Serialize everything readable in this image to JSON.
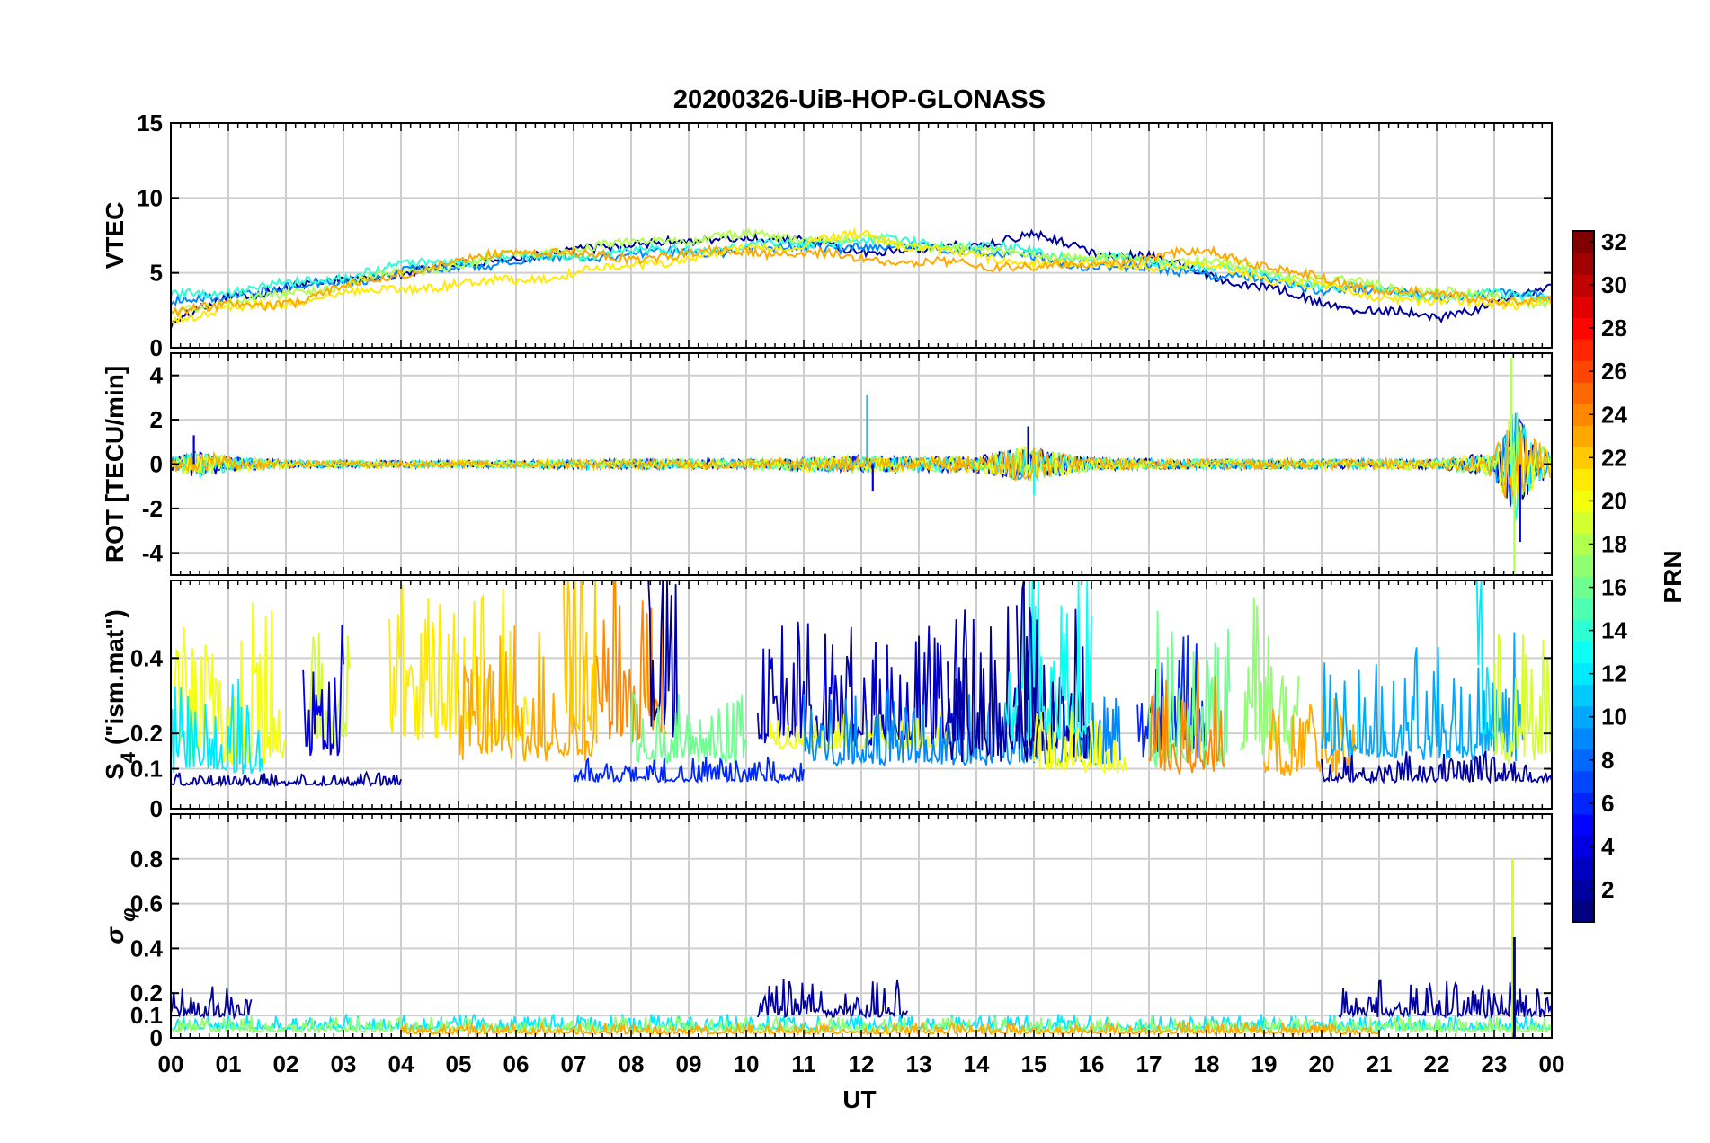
{
  "chart_data": [
    {
      "type": "line",
      "title": "20200326-UiB-HOP-GLONASS",
      "ylabel": "VTEC",
      "ylim": [
        0,
        15
      ],
      "yticks": [
        "0",
        "5",
        "10",
        "15"
      ],
      "xlim": [
        "00",
        "24"
      ],
      "series_coloring": "PRN (colorbar)",
      "series": [
        {
          "prn": 2,
          "x": [
            0.0,
            1.0,
            2.0,
            3.0,
            4.0,
            5.0,
            6.0,
            7.0,
            8.0,
            9.0,
            10.0,
            11.0,
            12.0,
            13.0,
            14.0,
            15.0,
            16.0,
            17.0,
            18.0,
            19.0,
            20.0,
            21.0,
            22.0,
            23.0,
            24.0
          ],
          "y": [
            1.5,
            3.5,
            4.0,
            4.5,
            5.0,
            5.5,
            6.0,
            6.5,
            7.0,
            7.0,
            7.5,
            7.0,
            6.5,
            6.5,
            7.0,
            7.5,
            6.5,
            6.0,
            5.0,
            4.0,
            3.0,
            2.5,
            2.0,
            3.0,
            4.0
          ]
        },
        {
          "prn": 9,
          "x": [
            0.0,
            2.0,
            4.0,
            6.0,
            8.0,
            10.0,
            12.0,
            14.0,
            16.0,
            18.0,
            20.0,
            22.0,
            24.0
          ],
          "y": [
            3.0,
            4.0,
            5.0,
            5.8,
            6.2,
            6.5,
            6.8,
            6.5,
            5.5,
            5.0,
            4.0,
            3.5,
            3.5
          ]
        },
        {
          "prn": 14,
          "x": [
            0.0,
            2.0,
            4.0,
            6.0,
            8.0,
            10.0,
            12.0,
            14.0,
            16.0,
            18.0,
            20.0,
            22.0,
            24.0
          ],
          "y": [
            3.5,
            4.2,
            5.5,
            6.0,
            6.4,
            6.8,
            7.2,
            6.8,
            6.0,
            5.5,
            4.2,
            3.5,
            3.5
          ]
        },
        {
          "prn": 18,
          "x": [
            0.0,
            2.0,
            4.0,
            6.0,
            8.0,
            10.0,
            12.0,
            14.0,
            16.0,
            18.0,
            20.0,
            22.0,
            24.0
          ],
          "y": [
            2.5,
            3.5,
            5.0,
            6.2,
            7.0,
            7.5,
            7.2,
            6.5,
            6.0,
            5.8,
            4.5,
            3.8,
            3.0
          ]
        },
        {
          "prn": 21,
          "x": [
            0.0,
            2.0,
            4.0,
            6.0,
            8.0,
            10.0,
            12.0,
            14.0,
            16.0,
            18.0,
            20.0,
            22.0,
            24.0
          ],
          "y": [
            2.0,
            3.0,
            4.0,
            4.5,
            5.5,
            6.5,
            7.5,
            6.0,
            5.5,
            5.5,
            4.0,
            3.0,
            3.0
          ]
        },
        {
          "prn": 23,
          "x": [
            0.0,
            2.0,
            4.0,
            6.0,
            8.0,
            10.0,
            12.0,
            14.0,
            16.0,
            18.0,
            20.0,
            22.0,
            24.0
          ],
          "y": [
            2.5,
            3.0,
            5.0,
            6.5,
            6.0,
            6.5,
            6.0,
            5.5,
            5.5,
            6.5,
            4.5,
            3.5,
            3.0
          ]
        }
      ]
    },
    {
      "type": "line",
      "ylabel": "ROT [TECU/min]",
      "ylim": [
        -5,
        5
      ],
      "yticks": [
        "-4",
        "-2",
        "0",
        "2",
        "4"
      ],
      "xlim": [
        "00",
        "24"
      ],
      "series_coloring": "PRN (colorbar)",
      "envelope": {
        "x": [
          0.0,
          0.5,
          1.0,
          2.0,
          4.0,
          6.0,
          8.0,
          10.0,
          12.0,
          13.0,
          14.0,
          14.9,
          16.0,
          18.0,
          20.0,
          22.0,
          23.0,
          23.35,
          23.6,
          24.0
        ],
        "y": [
          0.5,
          1.2,
          0.6,
          0.3,
          0.3,
          0.3,
          0.4,
          0.4,
          0.7,
          0.6,
          0.7,
          1.5,
          0.5,
          0.4,
          0.4,
          0.4,
          1.0,
          4.8,
          2.5,
          1.0
        ]
      },
      "spikes": [
        {
          "prn": 3,
          "x": 0.4,
          "y": 1.3
        },
        {
          "prn": 11,
          "x": 12.1,
          "y": 3.1
        },
        {
          "prn": 4,
          "x": 12.2,
          "y": -1.2
        },
        {
          "prn": 2,
          "x": 14.9,
          "y": 1.7
        },
        {
          "prn": 13,
          "x": 15.0,
          "y": -1.4
        },
        {
          "prn": 18,
          "x": 23.3,
          "y": 4.8
        },
        {
          "prn": 18,
          "x": 23.35,
          "y": -4.9
        },
        {
          "prn": 4,
          "x": 23.45,
          "y": -3.5
        }
      ]
    },
    {
      "type": "line",
      "ylabel": "S4 (\"ism.mat\")",
      "ylim": [
        0,
        0.6
      ],
      "yticks": [
        "0",
        "0.1",
        "0.2",
        "0.4"
      ],
      "xlim": [
        "00",
        "24"
      ],
      "series_coloring": "PRN (colorbar)",
      "segments": [
        {
          "prn": 20,
          "start": 0.0,
          "end": 2.0,
          "base": 0.13,
          "amp": 0.25
        },
        {
          "prn": 12,
          "start": 0.0,
          "end": 1.6,
          "base": 0.1,
          "amp": 0.15
        },
        {
          "prn": 2,
          "start": 0.0,
          "end": 4.0,
          "base": 0.06,
          "amp": 0.02
        },
        {
          "prn": 19,
          "start": 2.4,
          "end": 3.1,
          "base": 0.18,
          "amp": 0.2
        },
        {
          "prn": 4,
          "start": 2.3,
          "end": 3.0,
          "base": 0.15,
          "amp": 0.2
        },
        {
          "prn": 21,
          "start": 3.8,
          "end": 6.2,
          "base": 0.18,
          "amp": 0.28
        },
        {
          "prn": 23,
          "start": 5.0,
          "end": 7.4,
          "base": 0.14,
          "amp": 0.22
        },
        {
          "prn": 22,
          "start": 6.8,
          "end": 7.4,
          "base": 0.22,
          "amp": 0.38
        },
        {
          "prn": 24,
          "start": 7.4,
          "end": 8.6,
          "base": 0.2,
          "amp": 0.28
        },
        {
          "prn": 2,
          "start": 8.3,
          "end": 8.8,
          "base": 0.22,
          "amp": 0.42
        },
        {
          "prn": 16,
          "start": 8.0,
          "end": 10.0,
          "base": 0.12,
          "amp": 0.12
        },
        {
          "prn": 6,
          "start": 7.0,
          "end": 11.0,
          "base": 0.07,
          "amp": 0.04
        },
        {
          "prn": 3,
          "start": 10.2,
          "end": 13.8,
          "base": 0.18,
          "amp": 0.2
        },
        {
          "prn": 20,
          "start": 10.4,
          "end": 13.5,
          "base": 0.16,
          "amp": 0.06
        },
        {
          "prn": 9,
          "start": 11.0,
          "end": 16.5,
          "base": 0.12,
          "amp": 0.12
        },
        {
          "prn": 2,
          "start": 13.5,
          "end": 16.0,
          "base": 0.14,
          "amp": 0.25
        },
        {
          "prn": 13,
          "start": 14.5,
          "end": 16.0,
          "base": 0.2,
          "amp": 0.3
        },
        {
          "prn": 2,
          "start": 14.7,
          "end": 15.1,
          "base": 0.2,
          "amp": 0.45
        },
        {
          "prn": 20,
          "start": 15.0,
          "end": 16.6,
          "base": 0.1,
          "amp": 0.12
        },
        {
          "prn": 6,
          "start": 16.8,
          "end": 18.0,
          "base": 0.15,
          "amp": 0.2
        },
        {
          "prn": 16,
          "start": 17.0,
          "end": 18.4,
          "base": 0.12,
          "amp": 0.25
        },
        {
          "prn": 24,
          "start": 17.0,
          "end": 18.3,
          "base": 0.1,
          "amp": 0.18
        },
        {
          "prn": 17,
          "start": 18.6,
          "end": 19.6,
          "base": 0.16,
          "amp": 0.25
        },
        {
          "prn": 23,
          "start": 19.0,
          "end": 20.6,
          "base": 0.09,
          "amp": 0.13
        },
        {
          "prn": 10,
          "start": 20.0,
          "end": 23.5,
          "base": 0.14,
          "amp": 0.2
        },
        {
          "prn": 2,
          "start": 20.0,
          "end": 24.0,
          "base": 0.07,
          "amp": 0.05
        },
        {
          "prn": 12,
          "start": 22.7,
          "end": 23.0,
          "base": 0.2,
          "amp": 0.34
        },
        {
          "prn": 19,
          "start": 23.0,
          "end": 24.0,
          "base": 0.13,
          "amp": 0.22
        }
      ]
    },
    {
      "type": "line",
      "ylabel": "σ φ",
      "ylim": [
        0,
        1
      ],
      "yticks": [
        "0",
        "0.1",
        "0.2",
        "0.4",
        "0.6",
        "0.8"
      ],
      "xlim": [
        "00",
        "24"
      ],
      "series_coloring": "PRN (colorbar)",
      "segments": [
        {
          "prn": 2,
          "start": 0.0,
          "end": 1.4,
          "base": 0.1,
          "amp": 0.09
        },
        {
          "prn": 2,
          "start": 10.2,
          "end": 12.8,
          "base": 0.1,
          "amp": 0.1
        },
        {
          "prn": 2,
          "start": 20.3,
          "end": 24.0,
          "base": 0.1,
          "amp": 0.1
        },
        {
          "prn": 12,
          "start": 0.0,
          "end": 24.0,
          "base": 0.04,
          "amp": 0.04
        },
        {
          "prn": 17,
          "start": 0.0,
          "end": 24.0,
          "base": 0.03,
          "amp": 0.04
        },
        {
          "prn": 23,
          "start": 4.0,
          "end": 21.0,
          "base": 0.02,
          "amp": 0.03
        }
      ],
      "spikes": [
        {
          "prn": 19,
          "x": 23.32,
          "y": 0.8
        },
        {
          "prn": 2,
          "x": 23.35,
          "y": 0.45
        }
      ]
    }
  ],
  "x_axis": {
    "label": "UT",
    "ticks": [
      "00",
      "01",
      "02",
      "03",
      "04",
      "05",
      "06",
      "07",
      "08",
      "09",
      "10",
      "11",
      "12",
      "13",
      "14",
      "15",
      "16",
      "17",
      "18",
      "19",
      "20",
      "21",
      "22",
      "23",
      "00"
    ]
  },
  "colorbar": {
    "label": "PRN",
    "range": [
      1,
      32
    ],
    "colormap": "jet",
    "ticks": [
      "2",
      "4",
      "6",
      "8",
      "10",
      "12",
      "14",
      "16",
      "18",
      "20",
      "22",
      "24",
      "26",
      "28",
      "30",
      "32"
    ]
  }
}
